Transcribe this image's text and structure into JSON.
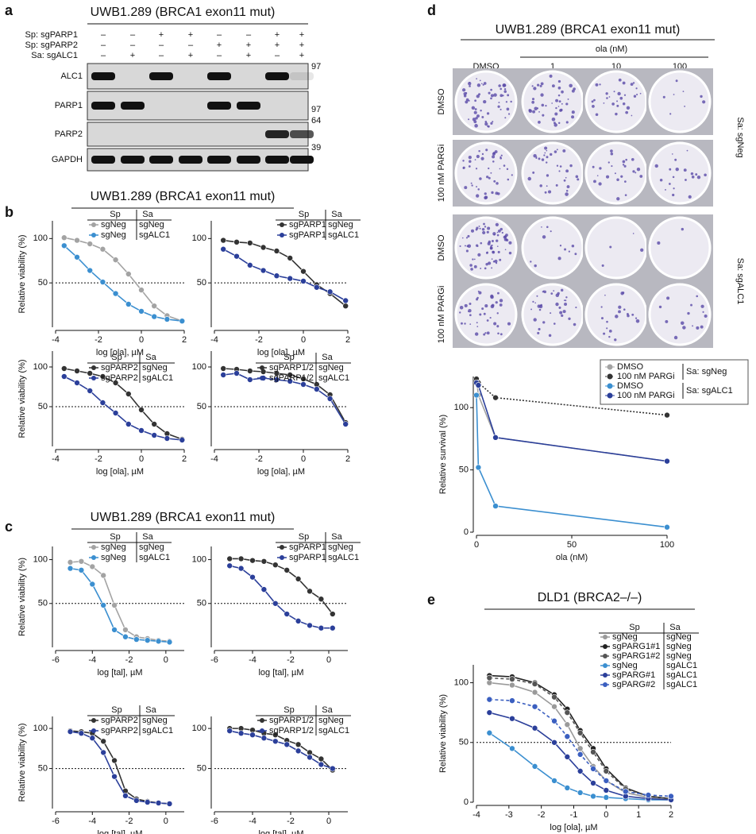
{
  "panel_labels": [
    "a",
    "b",
    "c",
    "d",
    "e"
  ],
  "blot": {
    "title": "UWB1.289 (BRCA1 exon11 mut)",
    "rows": [
      {
        "label": "Sp: sgPARP1",
        "signs": [
          "–",
          "–",
          "+",
          "+",
          "–",
          "–",
          "+",
          "+"
        ]
      },
      {
        "label": "Sp: sgPARP2",
        "signs": [
          "–",
          "–",
          "–",
          "–",
          "+",
          "+",
          "+",
          "+"
        ]
      },
      {
        "label": "Sa: sgALC1",
        "signs": [
          "–",
          "+",
          "–",
          "+",
          "–",
          "+",
          "–",
          "+"
        ]
      }
    ],
    "bands": [
      {
        "label": "ALC1",
        "size": "97"
      },
      {
        "label": "PARP1",
        "size": "97"
      },
      {
        "label": "PARP2",
        "size": "64"
      },
      {
        "label": "GAPDH",
        "size": "39"
      }
    ]
  },
  "headers": {
    "b": "UWB1.289 (BRCA1 exon11 mut)",
    "c": "UWB1.289 (BRCA1 exon11 mut)"
  },
  "plates": {
    "title": "UWB1.289 (BRCA1 exon11 mut)",
    "dose_label": "ola (nM)",
    "columns": [
      "DMSO",
      "1",
      "10",
      "100"
    ],
    "rows": [
      "DMSO",
      "100 nM PARGi",
      "DMSO",
      "100 nM PARGi"
    ],
    "groups": [
      "Sa: sgNeg",
      "Sa: sgALC1"
    ]
  },
  "chart_data": [
    {
      "type": "line",
      "legend_header": [
        "Sp",
        "Sa"
      ],
      "ylabel": "Relative viability (%)",
      "xlabel": "log [ola], µM",
      "x": [
        -3.6,
        -3,
        -2.4,
        -1.8,
        -1.2,
        -0.6,
        0,
        0.6,
        1.2,
        1.9
      ],
      "xlim": [
        -4,
        2
      ],
      "xticks": [
        -4,
        -2,
        0,
        2
      ],
      "ylim": [
        0,
        120
      ],
      "yticks": [
        50,
        100
      ],
      "hline": 50,
      "series": [
        {
          "name": "sgNeg",
          "sa": "sgNeg",
          "color": "#a3a3a3",
          "sa_color": "#111",
          "values": [
            101,
            98,
            94,
            88,
            76,
            60,
            42,
            24,
            13,
            7
          ]
        },
        {
          "name": "sgNeg",
          "sa": "sgALC1",
          "color": "#3b8fd0",
          "sa_color": "#3b6fc0",
          "values": [
            92,
            79,
            64,
            51,
            38,
            26,
            18,
            12,
            9,
            7
          ]
        }
      ]
    },
    {
      "type": "line",
      "legend_header": [
        "Sp",
        "Sa"
      ],
      "xlabel": "log [ola], µM",
      "x": [
        -3.6,
        -3,
        -2.4,
        -1.8,
        -1.2,
        -0.6,
        0,
        0.6,
        1.2,
        1.9
      ],
      "xlim": [
        -4,
        2
      ],
      "xticks": [
        -4,
        -2,
        0,
        2
      ],
      "ylim": [
        0,
        120
      ],
      "yticks": [
        50,
        100
      ],
      "hline": 50,
      "series": [
        {
          "name": "sgPARP1",
          "sa": "sgNeg",
          "color": "#333333",
          "sa_color": "#111",
          "values": [
            98,
            96,
            95,
            90,
            86,
            78,
            63,
            48,
            38,
            24
          ]
        },
        {
          "name": "sgPARP1",
          "sa": "sgALC1",
          "color": "#2b3f9a",
          "sa_color": "#3b6fc0",
          "values": [
            88,
            80,
            70,
            64,
            58,
            55,
            52,
            45,
            40,
            30
          ]
        }
      ]
    },
    {
      "type": "line",
      "legend_header": [
        "Sp",
        "Sa"
      ],
      "ylabel": "Relative viability (%)",
      "xlabel": "log [ola], µM",
      "x": [
        -3.6,
        -3,
        -2.4,
        -1.8,
        -1.2,
        -0.6,
        0,
        0.6,
        1.2,
        1.9
      ],
      "xlim": [
        -4,
        2
      ],
      "xticks": [
        -4,
        -2,
        0,
        2
      ],
      "ylim": [
        0,
        120
      ],
      "yticks": [
        50,
        100
      ],
      "hline": 50,
      "series": [
        {
          "name": "sgPARP2",
          "sa": "sgNeg",
          "color": "#333333",
          "sa_color": "#111",
          "values": [
            98,
            95,
            92,
            88,
            80,
            66,
            46,
            28,
            16,
            9
          ]
        },
        {
          "name": "sgPARP2",
          "sa": "sgALC1",
          "color": "#2b3f9a",
          "sa_color": "#3b6fc0",
          "values": [
            88,
            80,
            70,
            55,
            42,
            28,
            20,
            14,
            10,
            8
          ]
        }
      ]
    },
    {
      "type": "line",
      "legend_header": [
        "Sp",
        "Sa"
      ],
      "xlabel": "log [ola], µM",
      "x": [
        -3.6,
        -3,
        -2.4,
        -1.8,
        -1.2,
        -0.6,
        0,
        0.6,
        1.2,
        1.9
      ],
      "xlim": [
        -4,
        2
      ],
      "xticks": [
        -4,
        -2,
        0,
        2
      ],
      "ylim": [
        0,
        120
      ],
      "yticks": [
        50,
        100
      ],
      "hline": 50,
      "series": [
        {
          "name": "sgPARP1/2",
          "sa": "sgNeg",
          "color": "#333333",
          "sa_color": "#111",
          "values": [
            98,
            97,
            95,
            94,
            92,
            90,
            85,
            78,
            65,
            30
          ]
        },
        {
          "name": "sgPARP1/2",
          "sa": "sgALC1",
          "color": "#2b3f9a",
          "sa_color": "#3b6fc0",
          "values": [
            90,
            92,
            84,
            86,
            84,
            82,
            78,
            72,
            60,
            28
          ]
        }
      ]
    },
    {
      "type": "line",
      "legend_header": [
        "Sp",
        "Sa"
      ],
      "ylabel": "Relative viability (%)",
      "xlabel": "log [tal], µM",
      "x": [
        -5.2,
        -4.6,
        -4,
        -3.4,
        -2.8,
        -2.2,
        -1.6,
        -1,
        -0.4,
        0.2
      ],
      "xlim": [
        -6,
        1
      ],
      "xticks": [
        -6,
        -4,
        -2,
        0
      ],
      "ylim": [
        0,
        115
      ],
      "yticks": [
        50,
        100
      ],
      "hline": 50,
      "series": [
        {
          "name": "sgNeg",
          "sa": "sgNeg",
          "color": "#a3a3a3",
          "sa_color": "#111",
          "values": [
            97,
            98,
            92,
            82,
            48,
            20,
            12,
            10,
            8,
            7
          ]
        },
        {
          "name": "sgNeg",
          "sa": "sgALC1",
          "color": "#3b8fd0",
          "sa_color": "#3b6fc0",
          "values": [
            90,
            88,
            72,
            48,
            20,
            12,
            9,
            8,
            7,
            6
          ]
        }
      ]
    },
    {
      "type": "line",
      "legend_header": [
        "Sp",
        "Sa"
      ],
      "xlabel": "log [tal], µM",
      "x": [
        -5.2,
        -4.6,
        -4,
        -3.4,
        -2.8,
        -2.2,
        -1.6,
        -1,
        -0.4,
        0.2
      ],
      "xlim": [
        -6,
        1
      ],
      "xticks": [
        -6,
        -4,
        -2,
        0
      ],
      "ylim": [
        0,
        115
      ],
      "yticks": [
        50,
        100
      ],
      "hline": 50,
      "series": [
        {
          "name": "sgPARP1",
          "sa": "sgNeg",
          "color": "#333333",
          "sa_color": "#111",
          "values": [
            101,
            101,
            99,
            98,
            94,
            88,
            78,
            64,
            55,
            38
          ]
        },
        {
          "name": "sgPARP1",
          "sa": "sgALC1",
          "color": "#2b3f9a",
          "sa_color": "#3b6fc0",
          "values": [
            93,
            90,
            80,
            66,
            50,
            38,
            30,
            25,
            22,
            22
          ]
        }
      ]
    },
    {
      "type": "line",
      "legend_header": [
        "Sp",
        "Sa"
      ],
      "ylabel": "Relative viability (%)",
      "xlabel": "log [tal], µM",
      "x": [
        -5.2,
        -4.6,
        -4,
        -3.4,
        -2.8,
        -2.2,
        -1.6,
        -1,
        -0.4,
        0.2
      ],
      "xlim": [
        -6,
        1
      ],
      "xticks": [
        -6,
        -4,
        -2,
        0
      ],
      "ylim": [
        0,
        115
      ],
      "yticks": [
        50,
        100
      ],
      "hline": 50,
      "series": [
        {
          "name": "sgPARP2",
          "sa": "sgNeg",
          "color": "#333333",
          "sa_color": "#111",
          "values": [
            97,
            96,
            94,
            84,
            60,
            22,
            12,
            9,
            7,
            6
          ]
        },
        {
          "name": "sgPARP2",
          "sa": "sgALC1",
          "color": "#2b3f9a",
          "sa_color": "#3b6fc0",
          "values": [
            96,
            94,
            88,
            70,
            40,
            16,
            10,
            8,
            7,
            6
          ]
        }
      ]
    },
    {
      "type": "line",
      "legend_header": [
        "Sp",
        "Sa"
      ],
      "xlabel": "log [tal], µM",
      "x": [
        -5.2,
        -4.6,
        -4,
        -3.4,
        -2.8,
        -2.2,
        -1.6,
        -1,
        -0.4,
        0.2
      ],
      "xlim": [
        -6,
        1
      ],
      "xticks": [
        -6,
        -4,
        -2,
        0
      ],
      "ylim": [
        0,
        115
      ],
      "yticks": [
        50,
        100
      ],
      "hline": 50,
      "series": [
        {
          "name": "sgPARP1/2",
          "sa": "sgNeg",
          "color": "#333333",
          "sa_color": "#111",
          "values": [
            100,
            100,
            98,
            94,
            92,
            85,
            80,
            70,
            62,
            48
          ]
        },
        {
          "name": "sgPARP1/2",
          "sa": "sgALC1",
          "color": "#2b3f9a",
          "sa_color": "#3b6fc0",
          "values": [
            97,
            94,
            92,
            88,
            84,
            80,
            72,
            64,
            55,
            50
          ]
        }
      ]
    },
    {
      "type": "line",
      "ylabel": "Relative survival (%)",
      "xlabel": "ola (nM)",
      "legend_groups": [
        "Sa: sgNeg",
        "Sa: sgALC1"
      ],
      "x": [
        0,
        1,
        10,
        100
      ],
      "xlim": [
        0,
        100
      ],
      "xticks": [
        0,
        50,
        100
      ],
      "ylim": [
        0,
        125
      ],
      "yticks": [
        0,
        50,
        100
      ],
      "series": [
        {
          "name": "DMSO",
          "color": "#a3a3a3",
          "values": [
            123,
            110,
            76,
            57
          ]
        },
        {
          "name": "100 nM PARGi",
          "color": "#333333",
          "dash": "2,2",
          "values": [
            123,
            120,
            108,
            94
          ]
        },
        {
          "name": "DMSO",
          "color": "#3b8fd0",
          "values": [
            110,
            52,
            21,
            4
          ]
        },
        {
          "name": "100 nM PARGi",
          "color": "#2b3f9a",
          "values": [
            120,
            118,
            76,
            57
          ]
        }
      ]
    },
    {
      "type": "line",
      "title": "DLD1 (BRCA2–/–)",
      "legend_header": [
        "Sp",
        "Sa"
      ],
      "ylabel": "Relative viability (%)",
      "xlabel": "log [ola], µM",
      "x": [
        -3.6,
        -2.9,
        -2.2,
        -1.6,
        -1.2,
        -0.8,
        -0.4,
        0,
        0.6,
        1.3,
        2
      ],
      "xlim": [
        -4,
        2
      ],
      "xticks": [
        -4,
        -3,
        -2,
        -1,
        0,
        1,
        2
      ],
      "ylim": [
        0,
        115
      ],
      "yticks": [
        0,
        50,
        100
      ],
      "hline": 50,
      "series": [
        {
          "name": "sgNeg",
          "sa": "sgNeg",
          "color": "#9a9a9a",
          "sa_color": "#111",
          "values": [
            100,
            98,
            92,
            80,
            65,
            45,
            30,
            18,
            8,
            4,
            3
          ]
        },
        {
          "name": "sgPARG1#1",
          "sa": "sgNeg",
          "color": "#222222",
          "sa_color": "#111",
          "values": [
            106,
            105,
            100,
            90,
            78,
            60,
            45,
            28,
            12,
            5,
            3
          ]
        },
        {
          "name": "sgPARG1#2",
          "sa": "sgNeg",
          "color": "#555555",
          "sa_color": "#111",
          "dash": "4,3",
          "values": [
            104,
            103,
            99,
            88,
            75,
            58,
            42,
            26,
            11,
            5,
            3
          ]
        },
        {
          "name": "sgNeg",
          "sa": "sgALC1",
          "color": "#3b8fd0",
          "sa_color": "#3b6fc0",
          "values": [
            58,
            45,
            30,
            18,
            12,
            8,
            5,
            4,
            3,
            2,
            2
          ]
        },
        {
          "name": "sgPARG#1",
          "sa": "sgALC1",
          "color": "#2b3f9a",
          "sa_color": "#3b6fc0",
          "values": [
            75,
            70,
            62,
            50,
            38,
            26,
            16,
            10,
            5,
            3,
            2
          ]
        },
        {
          "name": "sgPARG#2",
          "sa": "sgALC1",
          "color": "#3b5fc0",
          "sa_color": "#3b6fc0",
          "dash": "4,3",
          "values": [
            86,
            85,
            80,
            68,
            55,
            40,
            28,
            18,
            9,
            6,
            5
          ]
        }
      ]
    }
  ]
}
